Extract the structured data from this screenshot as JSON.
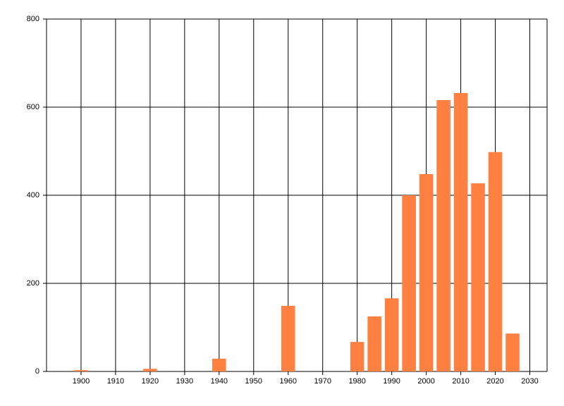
{
  "chart_data": {
    "type": "bar",
    "x": [
      1900,
      1920,
      1940,
      1960,
      1980,
      1985,
      1990,
      1995,
      2000,
      2005,
      2010,
      2015,
      2020,
      2025
    ],
    "values": [
      3,
      6,
      29,
      149,
      67,
      125,
      166,
      400,
      448,
      616,
      632,
      427,
      498,
      86
    ],
    "color": "#ff8040",
    "xlim": [
      1890,
      2035
    ],
    "xticks": [
      1900,
      1910,
      1920,
      1930,
      1940,
      1950,
      1960,
      1970,
      1980,
      1990,
      2000,
      2010,
      2020,
      2030
    ],
    "ylim": [
      0,
      800
    ],
    "yticks": [
      0,
      200,
      400,
      600,
      800
    ],
    "grid": true
  }
}
